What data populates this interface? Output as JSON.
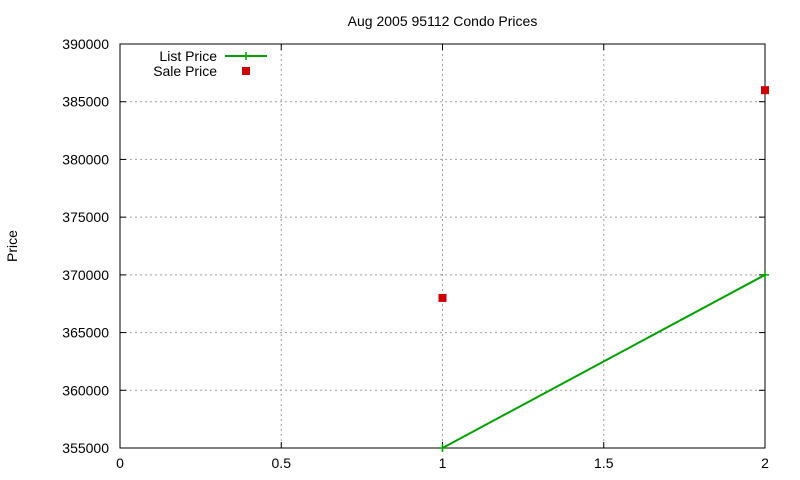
{
  "chart_data": {
    "type": "line",
    "title": "Aug 2005 95112 Condo Prices",
    "xlabel": "",
    "ylabel": "Price",
    "xlim": [
      0,
      2
    ],
    "ylim": [
      355000,
      390000
    ],
    "x_ticks": [
      "0",
      "0.5",
      "1",
      "1.5",
      "2"
    ],
    "y_ticks": [
      "355000",
      "360000",
      "365000",
      "370000",
      "375000",
      "380000",
      "385000",
      "390000"
    ],
    "grid": true,
    "legend_position": "top-left",
    "series": [
      {
        "name": "List Price",
        "style": "line-with-plus-markers",
        "color": "#00a000",
        "points": [
          {
            "x": 1,
            "y": 355000
          },
          {
            "x": 2,
            "y": 370000
          }
        ]
      },
      {
        "name": "Sale Price",
        "style": "square-markers",
        "color": "#cc0000",
        "points": [
          {
            "x": 1,
            "y": 368000
          },
          {
            "x": 2,
            "y": 386000
          }
        ]
      }
    ]
  }
}
